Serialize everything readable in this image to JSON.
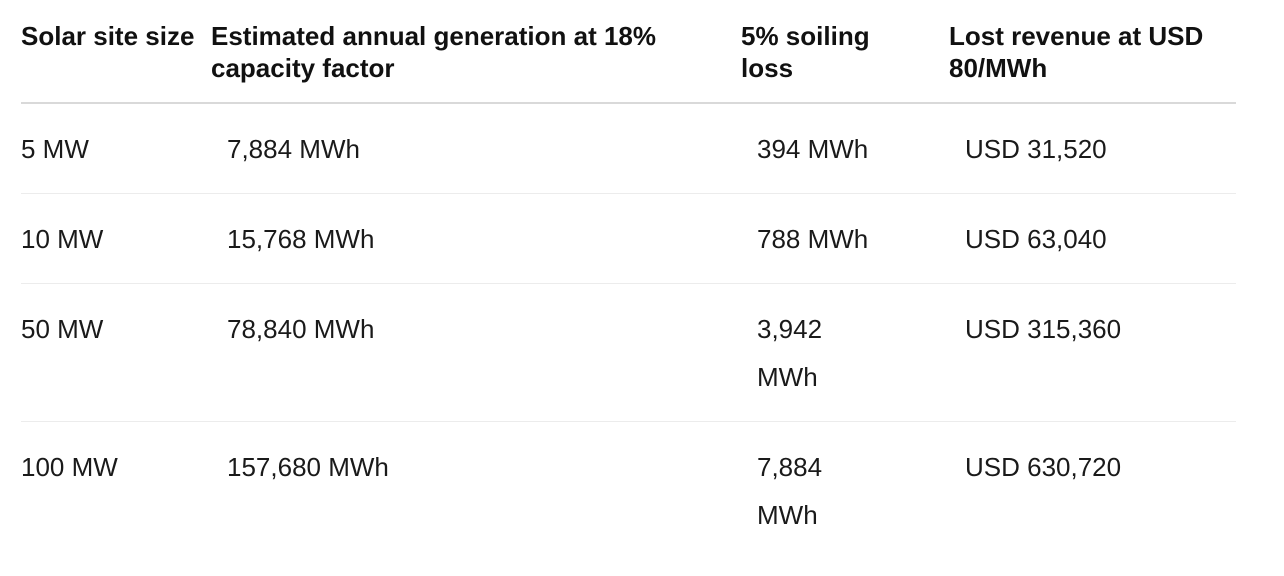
{
  "table": {
    "headers": [
      "Solar site size",
      "Estimated annual generation at 18% capacity factor",
      "5% soiling loss",
      "Lost revenue at USD 80/MWh"
    ],
    "rows": [
      [
        "5 MW",
        "7,884 MWh",
        "394 MWh",
        "USD 31,520"
      ],
      [
        "10 MW",
        "15,768 MWh",
        "788 MWh",
        "USD 63,040"
      ],
      [
        "50 MW",
        "78,840 MWh",
        "3,942 MWh",
        "USD 315,360"
      ],
      [
        "100 MW",
        "157,680 MWh",
        "7,884 MWh",
        "USD 630,720"
      ]
    ]
  }
}
